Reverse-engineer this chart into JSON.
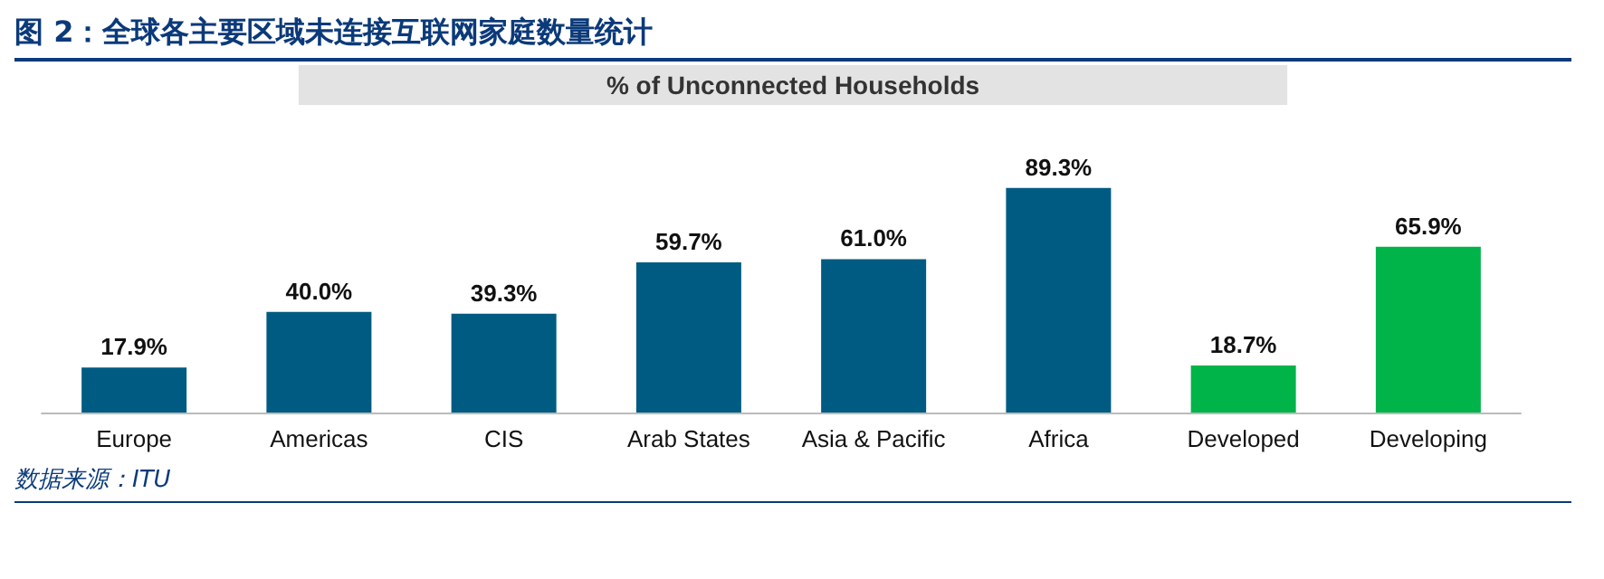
{
  "chart_data": {
    "type": "bar",
    "title": "图 2：全球各主要区域未连接互联网家庭数量统计",
    "subtitle": "% of Unconnected Households",
    "categories": [
      "Europe",
      "Americas",
      "CIS",
      "Arab States",
      "Asia & Pacific",
      "Africa",
      "Developed",
      "Developing"
    ],
    "values": [
      17.9,
      40.0,
      39.3,
      59.7,
      61.0,
      89.3,
      18.7,
      65.9
    ],
    "value_labels": [
      "17.9%",
      "40.0%",
      "39.3%",
      "59.7%",
      "61.0%",
      "89.3%",
      "18.7%",
      "65.9%"
    ],
    "colors": [
      "#005b82",
      "#005b82",
      "#005b82",
      "#005b82",
      "#005b82",
      "#005b82",
      "#00b44a",
      "#00b44a"
    ],
    "annotations": [
      "数据来源：ITU"
    ]
  }
}
